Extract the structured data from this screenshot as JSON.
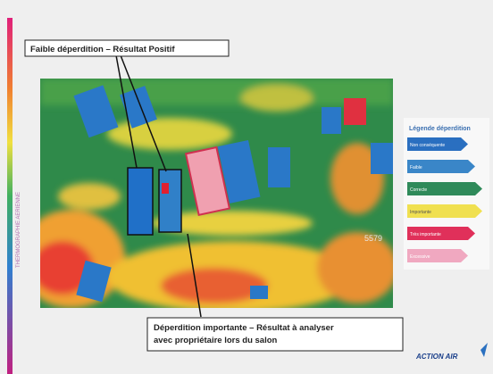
{
  "slide": {
    "side_label": "THERMOGRAPHIE AERIENNE",
    "image_number": "5579",
    "callouts": [
      {
        "lines": [
          "Faible déperdition – Résultat Positif"
        ]
      },
      {
        "lines": [
          "Déperdition importante – Résultat à analyser",
          "avec propriétaire lors du salon"
        ]
      }
    ],
    "legend": {
      "title": "Légende déperdition",
      "items": [
        "Non conséquente",
        "Faible",
        "Correcte",
        "Importante",
        "Très importante",
        "Excessive"
      ]
    },
    "logo": "ACTION AIR"
  }
}
